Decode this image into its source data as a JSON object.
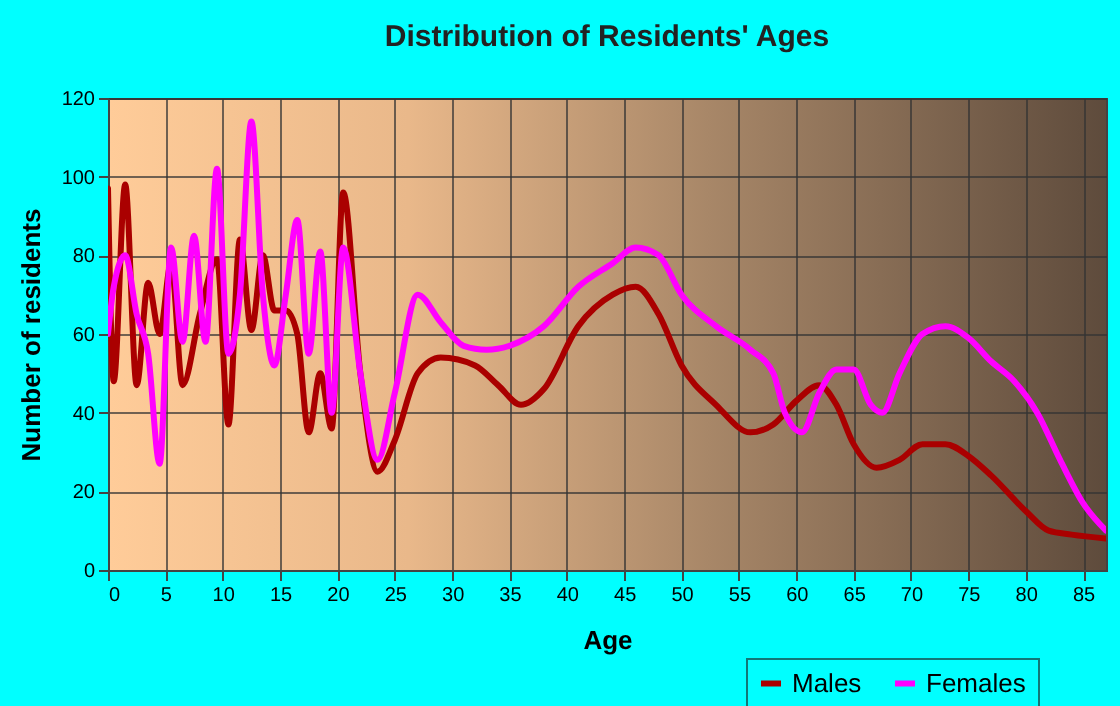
{
  "chart_data": {
    "type": "line",
    "title": "Distribution of Residents' Ages",
    "xlabel": "Age",
    "ylabel": "Number of residents",
    "xlim": [
      0,
      87
    ],
    "xticks": [
      0,
      5,
      10,
      15,
      20,
      25,
      30,
      35,
      40,
      45,
      50,
      55,
      60,
      65,
      70,
      75,
      80,
      85
    ],
    "ylim": [
      0,
      120
    ],
    "yticks": [
      0,
      20,
      40,
      60,
      80,
      100,
      120
    ],
    "grid": true,
    "legend": "bottom right",
    "series": [
      {
        "name": "Males",
        "color": "#aa0000",
        "x": [
          0,
          0.5,
          1.5,
          2.5,
          3.5,
          4.5,
          5.5,
          6.5,
          8,
          9.5,
          10.5,
          11.5,
          12.5,
          13.5,
          14.5,
          15.5,
          16.5,
          17.5,
          18.5,
          19.5,
          20.5,
          22,
          23.5,
          25,
          27,
          29,
          32,
          34,
          36,
          38,
          41,
          44,
          46,
          48,
          50,
          53,
          56,
          58,
          60,
          62,
          63.5,
          65,
          67,
          69,
          71,
          73,
          75,
          77,
          80,
          82,
          84,
          87
        ],
        "values": [
          97,
          48,
          98,
          47,
          73,
          60,
          78,
          47,
          65,
          79,
          37,
          84,
          61,
          80,
          66,
          66,
          60,
          35,
          50,
          36,
          96,
          50,
          25,
          33,
          50,
          54,
          52,
          47,
          42,
          46,
          62,
          70,
          72,
          65,
          52,
          42,
          35,
          37,
          43,
          47,
          42,
          32,
          26,
          28,
          32,
          32,
          29,
          24,
          15,
          10,
          9,
          8
        ]
      },
      {
        "name": "Females",
        "color": "#ff00ff",
        "x": [
          0,
          0.5,
          1.5,
          2.5,
          3.5,
          4.5,
          5.5,
          6.5,
          7.5,
          8.5,
          9.5,
          10.5,
          11.5,
          12.5,
          13.5,
          14.5,
          15.5,
          16.5,
          17.5,
          18.5,
          19.5,
          20.5,
          22,
          23.5,
          25,
          27,
          29,
          31,
          33,
          35,
          38,
          41,
          44,
          46,
          48,
          50,
          53,
          56,
          58,
          59,
          60.5,
          62,
          63.5,
          65,
          66.5,
          67.5,
          69,
          71,
          73,
          75,
          77,
          79,
          81,
          83,
          85,
          87
        ],
        "values": [
          60,
          72,
          80,
          65,
          55,
          27,
          82,
          58,
          85,
          58,
          102,
          55,
          70,
          114,
          70,
          52,
          70,
          89,
          55,
          81,
          40,
          82,
          50,
          28,
          45,
          70,
          63,
          57,
          56,
          57,
          62,
          72,
          78,
          82,
          80,
          70,
          62,
          56,
          50,
          40,
          35,
          45,
          51,
          51,
          42,
          40,
          50,
          60,
          62,
          59,
          53,
          48,
          40,
          28,
          17,
          10
        ]
      }
    ]
  }
}
